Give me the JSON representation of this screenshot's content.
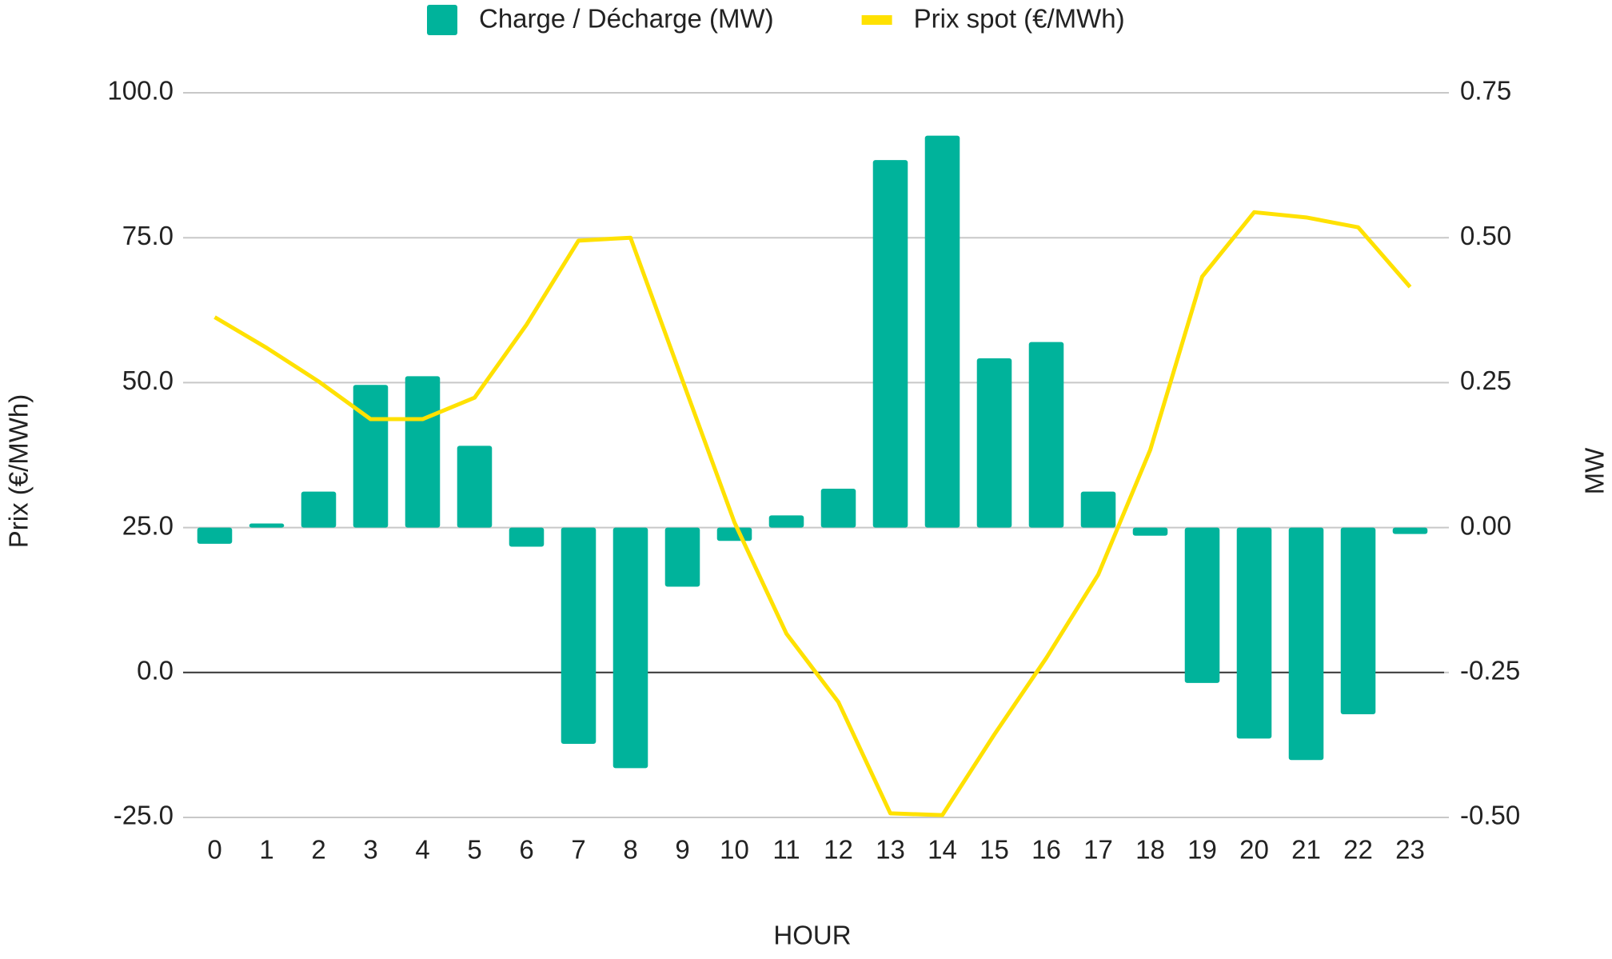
{
  "chart_data": {
    "type": "bar_line",
    "legend": "top",
    "grid": true,
    "x_label": "HOUR",
    "y_label": "Prix (€/MWh)",
    "y2_label": "MW",
    "categories": [
      "0",
      "1",
      "2",
      "3",
      "4",
      "5",
      "6",
      "7",
      "8",
      "9",
      "10",
      "11",
      "12",
      "13",
      "14",
      "15",
      "16",
      "17",
      "18",
      "19",
      "20",
      "21",
      "22",
      "23"
    ],
    "ylim": [
      -25,
      100
    ],
    "yticks": [
      {
        "value": -25,
        "label": "-25.0"
      },
      {
        "value": 0,
        "label": "0.0"
      },
      {
        "value": 25,
        "label": "25.0"
      },
      {
        "value": 50,
        "label": "50.0"
      },
      {
        "value": 75,
        "label": "75.0"
      },
      {
        "value": 100,
        "label": "100.0"
      }
    ],
    "y2lim": [
      -0.5,
      0.75
    ],
    "y2ticks": [
      {
        "value": -0.5,
        "label": "-0.50"
      },
      -0.25,
      {
        "value": 0,
        "label": "0.00"
      },
      0.25,
      {
        "value": 0.5,
        "label": "0.50"
      },
      0.75
    ],
    "series": [
      {
        "name": "Charge / Décharge (MW)",
        "type": "bar",
        "axis": "y2",
        "color": "#00b39b",
        "values": [
          -0.028,
          0.007,
          0.062,
          0.246,
          0.261,
          0.141,
          -0.033,
          -0.373,
          -0.415,
          -0.102,
          -0.023,
          0.021,
          0.067,
          0.634,
          0.676,
          0.292,
          0.32,
          0.062,
          -0.014,
          -0.268,
          -0.364,
          -0.401,
          -0.322,
          -0.011
        ]
      },
      {
        "name": "Prix spot (€/MWh)",
        "type": "line",
        "axis": "y",
        "color": "#ffe100",
        "values": [
          61.3,
          56.0,
          50.2,
          43.7,
          43.7,
          47.4,
          60.0,
          74.5,
          75.0,
          50.4,
          25.9,
          6.7,
          -5.1,
          -24.3,
          -24.6,
          -10.7,
          2.5,
          16.9,
          38.4,
          68.3,
          79.4,
          78.5,
          76.8,
          66.5
        ]
      }
    ]
  }
}
